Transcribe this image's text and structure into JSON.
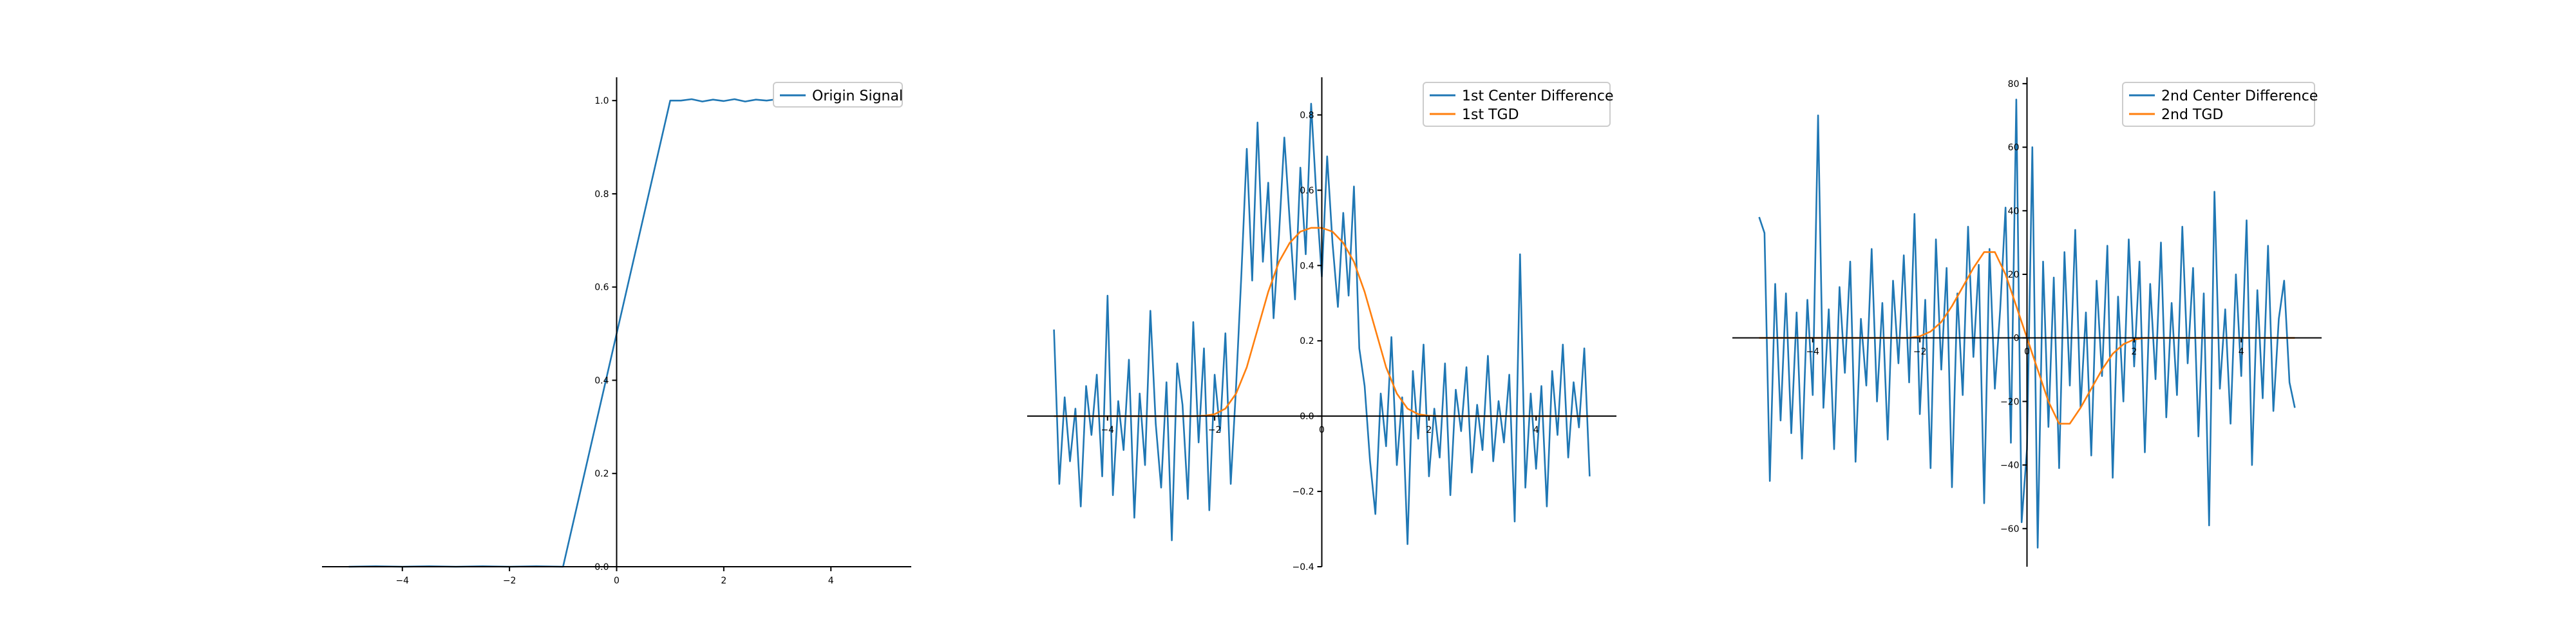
{
  "figure": {
    "background": "#ffffff"
  },
  "chart_data": [
    {
      "type": "line",
      "title": "",
      "xlabel": "",
      "ylabel": "",
      "xlim": [
        -5.5,
        5.5
      ],
      "ylim": [
        0.0,
        1.05
      ],
      "grid": false,
      "legend_position": "top-right",
      "xticks": [
        -4,
        -2,
        0,
        2,
        4
      ],
      "xtick_labels": [
        "−4",
        "−2",
        "0",
        "2",
        "4"
      ],
      "yticks": [
        0.0,
        0.2,
        0.4,
        0.6,
        0.8,
        1.0
      ],
      "ytick_labels": [
        "0.0",
        "0.2",
        "0.4",
        "0.6",
        "0.8",
        "1.0"
      ],
      "series": [
        {
          "name": "Origin Signal",
          "color": "#1f77b4",
          "x": [
            -5.0,
            -4.5,
            -4.0,
            -3.5,
            -3.0,
            -2.5,
            -2.0,
            -1.5,
            -1.0,
            1.0,
            1.2,
            1.4,
            1.6,
            1.8,
            2.0,
            2.2,
            2.4,
            2.6,
            2.8,
            3.0,
            3.2,
            3.4,
            3.6,
            3.8,
            4.0,
            4.2,
            4.4,
            4.6,
            4.8,
            5.0
          ],
          "y": [
            0.0,
            0.001,
            0.0,
            0.001,
            0.0,
            0.001,
            0.0,
            0.001,
            0.0,
            1.0,
            1.0,
            1.003,
            0.998,
            1.002,
            0.999,
            1.003,
            0.998,
            1.002,
            1.0,
            1.003,
            0.998,
            1.0,
            1.002,
            0.999,
            1.001,
            0.998,
            1.002,
            1.0,
            1.001,
            1.0
          ]
        }
      ]
    },
    {
      "type": "line",
      "title": "",
      "xlabel": "",
      "ylabel": "",
      "xlim": [
        -5.5,
        5.5
      ],
      "ylim": [
        -0.4,
        0.9
      ],
      "grid": false,
      "legend_position": "top-right",
      "xticks": [
        -4,
        -2,
        0,
        2,
        4
      ],
      "xtick_labels": [
        "−4",
        "−2",
        "0",
        "2",
        "4"
      ],
      "yticks": [
        -0.4,
        -0.2,
        0.0,
        0.2,
        0.4,
        0.6,
        0.8
      ],
      "ytick_labels": [
        "−0.4",
        "−0.2",
        "0.0",
        "0.2",
        "0.4",
        "0.6",
        "0.8"
      ],
      "series": [
        {
          "name": "1st Center Difference",
          "color": "#1f77b4",
          "x": [
            -5.0,
            -4.9,
            -4.8,
            -4.7,
            -4.6,
            -4.5,
            -4.4,
            -4.3,
            -4.2,
            -4.1,
            -4.0,
            -3.9,
            -3.8,
            -3.7,
            -3.6,
            -3.5,
            -3.4,
            -3.3,
            -3.2,
            -3.1,
            -3.0,
            -2.9,
            -2.8,
            -2.7,
            -2.6,
            -2.5,
            -2.4,
            -2.3,
            -2.2,
            -2.1,
            -2.0,
            -1.9,
            -1.8,
            -1.7,
            -1.6,
            -1.5,
            -1.4,
            -1.3,
            -1.2,
            -1.1,
            -1.0,
            -0.9,
            -0.8,
            -0.7,
            -0.6,
            -0.5,
            -0.4,
            -0.3,
            -0.2,
            -0.1,
            0.0,
            0.1,
            0.2,
            0.3,
            0.4,
            0.5,
            0.6,
            0.7,
            0.8,
            0.9,
            1.0,
            1.1,
            1.2,
            1.3,
            1.4,
            1.5,
            1.6,
            1.7,
            1.8,
            1.9,
            2.0,
            2.1,
            2.2,
            2.3,
            2.4,
            2.5,
            2.6,
            2.7,
            2.8,
            2.9,
            3.0,
            3.1,
            3.2,
            3.3,
            3.4,
            3.5,
            3.6,
            3.7,
            3.8,
            3.9,
            4.0,
            4.1,
            4.2,
            4.3,
            4.4,
            4.5,
            4.6,
            4.7,
            4.8,
            4.9,
            5.0
          ],
          "y": [
            0.23,
            -0.18,
            0.05,
            -0.12,
            0.02,
            -0.24,
            0.08,
            -0.05,
            0.11,
            -0.16,
            0.32,
            -0.21,
            0.04,
            -0.09,
            0.15,
            -0.27,
            0.06,
            -0.13,
            0.28,
            -0.02,
            -0.19,
            0.09,
            -0.33,
            0.14,
            0.03,
            -0.22,
            0.25,
            -0.07,
            0.18,
            -0.25,
            0.11,
            -0.04,
            0.22,
            -0.18,
            0.08,
            0.38,
            0.71,
            0.36,
            0.78,
            0.41,
            0.62,
            0.26,
            0.48,
            0.74,
            0.52,
            0.31,
            0.66,
            0.43,
            0.83,
            0.58,
            0.37,
            0.69,
            0.46,
            0.29,
            0.54,
            0.32,
            0.61,
            0.18,
            0.08,
            -0.12,
            -0.26,
            0.06,
            -0.08,
            0.21,
            -0.13,
            0.05,
            -0.34,
            0.12,
            -0.06,
            0.19,
            -0.16,
            0.02,
            -0.11,
            0.14,
            -0.21,
            0.07,
            -0.04,
            0.13,
            -0.15,
            0.03,
            -0.09,
            0.16,
            -0.12,
            0.04,
            -0.07,
            0.11,
            -0.28,
            0.43,
            -0.19,
            0.06,
            -0.14,
            0.08,
            -0.24,
            0.12,
            -0.05,
            0.19,
            -0.11,
            0.09,
            -0.03,
            0.18,
            -0.16
          ]
        },
        {
          "name": "1st TGD",
          "color": "#ff7f0e",
          "x": [
            -5.0,
            -4.8,
            -4.6,
            -4.4,
            -4.2,
            -4.0,
            -3.8,
            -3.6,
            -3.4,
            -3.2,
            -3.0,
            -2.8,
            -2.6,
            -2.4,
            -2.2,
            -2.0,
            -1.8,
            -1.6,
            -1.4,
            -1.2,
            -1.0,
            -0.8,
            -0.6,
            -0.4,
            -0.2,
            0.0,
            0.2,
            0.4,
            0.6,
            0.8,
            1.0,
            1.2,
            1.4,
            1.6,
            1.8,
            2.0,
            2.2,
            2.4,
            2.6,
            2.8,
            3.0,
            3.2,
            3.4,
            3.6,
            3.8,
            4.0,
            4.2,
            4.4,
            4.6,
            4.8,
            5.0
          ],
          "y": [
            0.0,
            0.0,
            0.0,
            0.0,
            0.0,
            0.0,
            0.0,
            0.0,
            0.0,
            0.0,
            0.0,
            0.0,
            0.0,
            0.0,
            0.001,
            0.005,
            0.02,
            0.06,
            0.13,
            0.23,
            0.33,
            0.41,
            0.46,
            0.49,
            0.5,
            0.5,
            0.49,
            0.46,
            0.41,
            0.33,
            0.23,
            0.13,
            0.06,
            0.02,
            0.005,
            0.001,
            0.0,
            0.0,
            0.0,
            0.0,
            0.0,
            0.0,
            0.0,
            0.0,
            0.0,
            0.0,
            0.0,
            0.0,
            0.0,
            0.0,
            0.0
          ]
        }
      ]
    },
    {
      "type": "line",
      "title": "",
      "xlabel": "",
      "ylabel": "",
      "xlim": [
        -5.5,
        5.5
      ],
      "ylim": [
        -72,
        82
      ],
      "grid": false,
      "legend_position": "top-right",
      "xticks": [
        -4,
        -2,
        0,
        2,
        4
      ],
      "xtick_labels": [
        "−4",
        "−2",
        "0",
        "2",
        "4"
      ],
      "yticks": [
        -60,
        -40,
        -20,
        0,
        20,
        40,
        60,
        80
      ],
      "ytick_labels": [
        "−60",
        "−40",
        "−20",
        "0",
        "20",
        "40",
        "60",
        "80"
      ],
      "series": [
        {
          "name": "2nd Center Difference",
          "color": "#1f77b4",
          "x": [
            -5.0,
            -4.9,
            -4.8,
            -4.7,
            -4.6,
            -4.5,
            -4.4,
            -4.3,
            -4.2,
            -4.1,
            -4.0,
            -3.9,
            -3.8,
            -3.7,
            -3.6,
            -3.5,
            -3.4,
            -3.3,
            -3.2,
            -3.1,
            -3.0,
            -2.9,
            -2.8,
            -2.7,
            -2.6,
            -2.5,
            -2.4,
            -2.3,
            -2.2,
            -2.1,
            -2.0,
            -1.9,
            -1.8,
            -1.7,
            -1.6,
            -1.5,
            -1.4,
            -1.3,
            -1.2,
            -1.1,
            -1.0,
            -0.9,
            -0.8,
            -0.7,
            -0.6,
            -0.5,
            -0.4,
            -0.3,
            -0.2,
            -0.1,
            0.0,
            0.1,
            0.2,
            0.3,
            0.4,
            0.5,
            0.6,
            0.7,
            0.8,
            0.9,
            1.0,
            1.1,
            1.2,
            1.3,
            1.4,
            1.5,
            1.6,
            1.7,
            1.8,
            1.9,
            2.0,
            2.1,
            2.2,
            2.3,
            2.4,
            2.5,
            2.6,
            2.7,
            2.8,
            2.9,
            3.0,
            3.1,
            3.2,
            3.3,
            3.4,
            3.5,
            3.6,
            3.7,
            3.8,
            3.9,
            4.0,
            4.1,
            4.2,
            4.3,
            4.4,
            4.5,
            4.6,
            4.7,
            4.8,
            4.9,
            5.0
          ],
          "y": [
            38,
            33,
            -45,
            17,
            -26,
            14,
            -30,
            8,
            -38,
            12,
            -18,
            70,
            -22,
            9,
            -35,
            16,
            -11,
            24,
            -39,
            6,
            -15,
            28,
            -20,
            11,
            -32,
            18,
            -8,
            26,
            -14,
            39,
            -24,
            12,
            -41,
            31,
            -10,
            22,
            -47,
            14,
            -18,
            35,
            -6,
            23,
            -52,
            28,
            -16,
            9,
            41,
            -33,
            75,
            -58,
            -35,
            60,
            -66,
            24,
            -28,
            19,
            -41,
            27,
            -15,
            34,
            -22,
            8,
            -37,
            18,
            -12,
            29,
            -44,
            13,
            -20,
            31,
            -9,
            24,
            -36,
            17,
            -13,
            30,
            -25,
            11,
            -18,
            35,
            -8,
            22,
            -31,
            14,
            -59,
            46,
            -16,
            9,
            -27,
            20,
            -12,
            37,
            -40,
            15,
            -19,
            29,
            -23,
            6,
            18,
            -14,
            -22
          ]
        },
        {
          "name": "2nd TGD",
          "color": "#ff7f0e",
          "x": [
            -5.0,
            -4.8,
            -4.6,
            -4.4,
            -4.2,
            -4.0,
            -3.8,
            -3.6,
            -3.4,
            -3.2,
            -3.0,
            -2.8,
            -2.6,
            -2.4,
            -2.2,
            -2.0,
            -1.8,
            -1.6,
            -1.4,
            -1.2,
            -1.0,
            -0.8,
            -0.6,
            -0.4,
            -0.2,
            0.0,
            0.2,
            0.4,
            0.6,
            0.8,
            1.0,
            1.2,
            1.4,
            1.6,
            1.8,
            2.0,
            2.2,
            2.4,
            2.6,
            2.8,
            3.0,
            3.2,
            3.4,
            3.6,
            3.8,
            4.0,
            4.2,
            4.4,
            4.6,
            4.8,
            5.0
          ],
          "y": [
            0,
            0,
            0,
            0,
            0,
            0,
            0,
            0,
            0,
            0,
            0,
            0,
            0,
            0,
            0,
            0.5,
            2,
            5,
            10,
            16,
            22,
            27,
            27,
            20,
            10,
            0,
            -10,
            -20,
            -27,
            -27,
            -22,
            -16,
            -10,
            -5,
            -2,
            -0.5,
            0,
            0,
            0,
            0,
            0,
            0,
            0,
            0,
            0,
            0,
            0,
            0,
            0,
            0,
            0
          ]
        }
      ]
    }
  ]
}
